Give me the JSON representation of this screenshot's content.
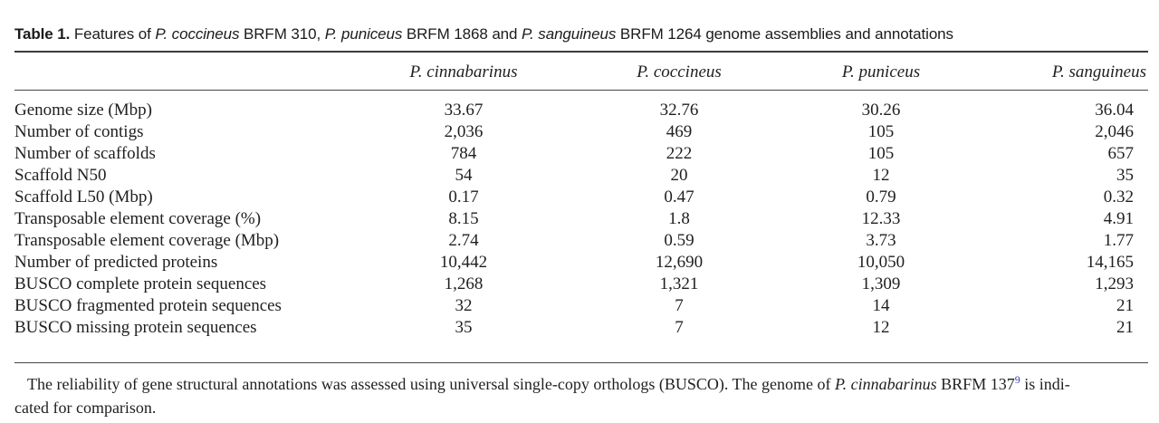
{
  "caption": {
    "label": "Table 1.",
    "seg1": " Features of ",
    "it1": "P. coccineus",
    "seg2": " BRFM 310, ",
    "it2": "P. puniceus",
    "seg3": " BRFM 1868 and ",
    "it3": "P. sanguineus",
    "seg4": " BRFM 1264 genome assemblies and annotations"
  },
  "table": {
    "columns": [
      "P. cinnabarinus",
      "P. coccineus",
      "P. puniceus",
      "P. sanguineus"
    ],
    "rows": [
      {
        "label": "Genome size (Mbp)",
        "values": [
          "33.67",
          "32.76",
          "30.26",
          "36.04"
        ]
      },
      {
        "label": "Number of contigs",
        "values": [
          "2,036",
          "469",
          "105",
          "2,046"
        ]
      },
      {
        "label": "Number of scaffolds",
        "values": [
          "784",
          "222",
          "105",
          "657"
        ]
      },
      {
        "label": "Scaffold N50",
        "values": [
          "54",
          "20",
          "12",
          "35"
        ]
      },
      {
        "label": "Scaffold L50 (Mbp)",
        "values": [
          "0.17",
          "0.47",
          "0.79",
          "0.32"
        ]
      },
      {
        "label": "Transposable element coverage (%)",
        "values": [
          "8.15",
          "1.8",
          "12.33",
          "4.91"
        ]
      },
      {
        "label": "Transposable element coverage (Mbp)",
        "values": [
          "2.74",
          "0.59",
          "3.73",
          "1.77"
        ]
      },
      {
        "label": "Number of predicted proteins",
        "values": [
          "10,442",
          "12,690",
          "10,050",
          "14,165"
        ]
      },
      {
        "label": "BUSCO complete protein sequences",
        "values": [
          "1,268",
          "1,321",
          "1,309",
          "1,293"
        ]
      },
      {
        "label": "BUSCO fragmented protein sequences",
        "values": [
          "32",
          "7",
          "14",
          "21"
        ]
      },
      {
        "label": "BUSCO missing protein sequences",
        "values": [
          "35",
          "7",
          "12",
          "21"
        ]
      }
    ]
  },
  "footnote": {
    "line1_seg1": "The reliability of gene structural annotations was assessed using universal single-copy orthologs (BUSCO). The genome of ",
    "line1_species": "P. cinnabarinus",
    "line1_seg2": " BRFM 137",
    "line1_ref": "9",
    "line1_seg3": " is indi-",
    "line2": "cated for comparison."
  },
  "colors": {
    "text": "#1f1f1f",
    "rule": "#454545",
    "reference_link": "#3b3bc0"
  }
}
